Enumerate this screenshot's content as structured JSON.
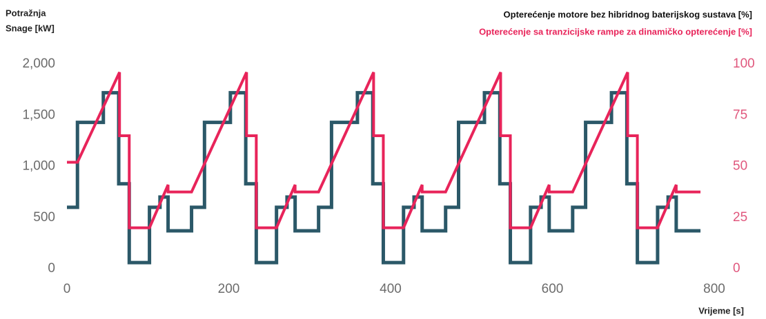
{
  "chart_data": {
    "type": "line",
    "y_label": [
      "Potražnja",
      "Snage [kW]"
    ],
    "x_label": "Vrijeme [s]",
    "xlim": [
      0,
      800
    ],
    "xticks": [
      0,
      200,
      400,
      600,
      800
    ],
    "ylim": [
      0,
      2000
    ],
    "yticks": [
      0,
      500,
      {
        "value": 1000,
        "label": "1,000"
      },
      {
        "value": 1500,
        "label": "1,500"
      },
      {
        "value": 2000,
        "label": "2,000"
      }
    ],
    "y2lim": [
      0,
      100
    ],
    "y2ticks": [
      0,
      25,
      50,
      75,
      100
    ],
    "grid": false,
    "legend": "top-right",
    "series": [
      {
        "name": "Opterećenje motore bez hibridnog baterijskog sustava [%]",
        "color": "#2b5868",
        "drawstyle": "steps-post",
        "x": [
          0,
          13,
          45,
          64,
          77,
          102,
          115,
          125,
          154,
          170,
          202,
          221,
          234,
          259,
          272,
          282,
          311,
          327,
          359,
          378,
          391,
          416,
          429,
          439,
          468,
          484,
          516,
          535,
          548,
          573,
          586,
          596,
          625,
          641,
          673,
          692,
          705,
          730,
          743,
          753,
          783
        ],
        "values": [
          600,
          1430,
          1720,
          830,
          60,
          600,
          700,
          370,
          600,
          1430,
          1720,
          830,
          60,
          600,
          700,
          370,
          600,
          1430,
          1720,
          830,
          60,
          600,
          700,
          370,
          600,
          1430,
          1720,
          830,
          60,
          600,
          700,
          370,
          600,
          1430,
          1720,
          830,
          60,
          600,
          700,
          370,
          370
        ]
      },
      {
        "name": "Opterećenje sa tranzicijske rampe za dinamičko opterećenje [%]",
        "color": "#e8245a",
        "axis": "y2",
        "x": [
          0,
          13,
          65,
          65,
          77,
          77,
          102,
          125,
          125,
          154,
          222,
          222,
          234,
          234,
          259,
          282,
          282,
          311,
          379,
          379,
          391,
          391,
          416,
          439,
          439,
          468,
          536,
          536,
          548,
          548,
          573,
          596,
          596,
          625,
          693,
          693,
          705,
          705,
          730,
          753,
          753,
          783
        ],
        "values": [
          52,
          52,
          96,
          65,
          65,
          20,
          20,
          41,
          37.5,
          37.5,
          96,
          65,
          65,
          20,
          20,
          41,
          37.5,
          37.5,
          96,
          65,
          65,
          20,
          20,
          41,
          37.5,
          37.5,
          96,
          65,
          65,
          20,
          20,
          41,
          37.5,
          37.5,
          96,
          65,
          65,
          20,
          20,
          41,
          37.5,
          37.5
        ]
      }
    ]
  }
}
